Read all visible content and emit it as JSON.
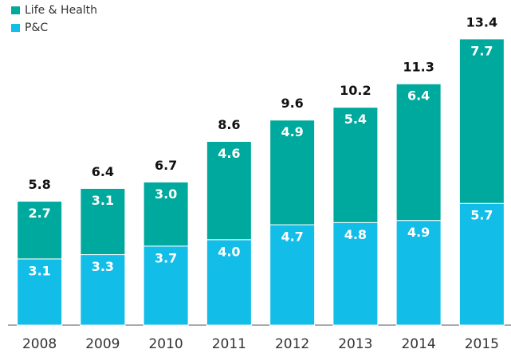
{
  "chart_data": {
    "type": "stacked_bar",
    "categories": [
      "2008",
      "2009",
      "2010",
      "2011",
      "2012",
      "2013",
      "2014",
      "2015"
    ],
    "series": [
      {
        "name": "P&C",
        "color": "#12bde8",
        "values": [
          3.1,
          3.3,
          3.7,
          4.0,
          4.7,
          4.8,
          4.9,
          5.7
        ],
        "value_labels": [
          "3.1",
          "3.3",
          "3.7",
          "4.0",
          "4.7",
          "4.8",
          "4.9",
          "5.7"
        ]
      },
      {
        "name": "Life & Health",
        "color": "#00a99d",
        "values": [
          2.7,
          3.1,
          3.0,
          4.6,
          4.9,
          5.4,
          6.4,
          7.7
        ],
        "value_labels": [
          "2.7",
          "3.1",
          "3.0",
          "4.6",
          "4.9",
          "5.4",
          "6.4",
          "7.7"
        ]
      }
    ],
    "totals": [
      5.8,
      6.4,
      6.7,
      8.6,
      9.6,
      10.2,
      11.3,
      13.4
    ],
    "ylim": [
      0,
      15
    ]
  }
}
